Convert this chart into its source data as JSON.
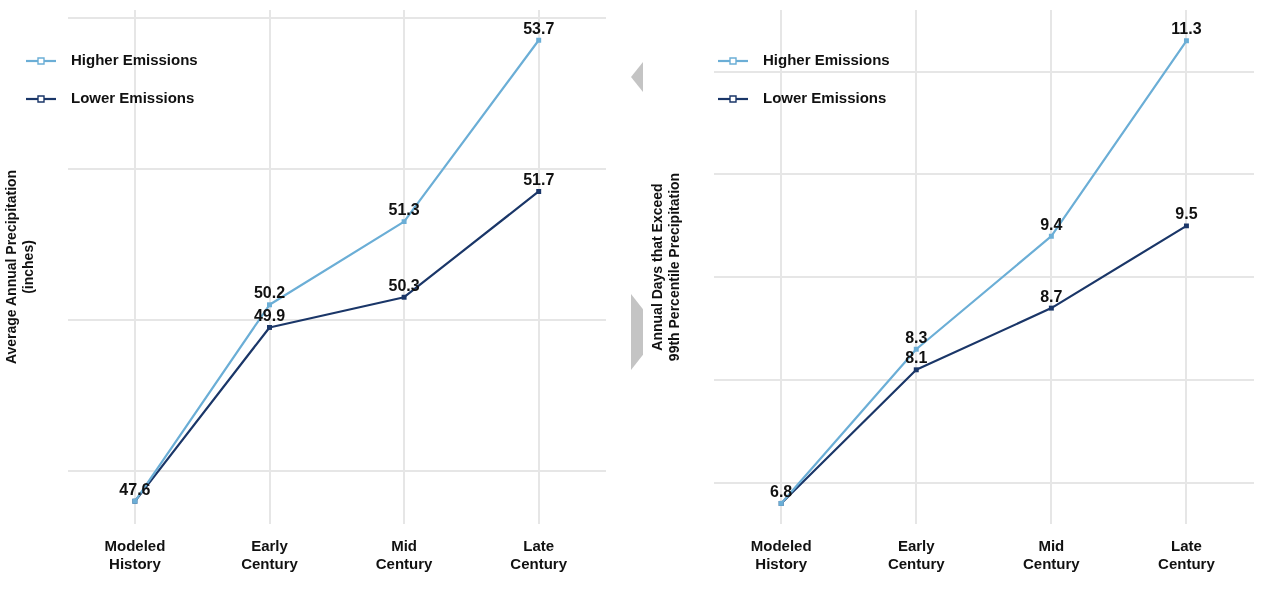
{
  "chart_data": [
    {
      "type": "line",
      "ylabel": "Average Annual Precipitation\n(inches)",
      "categories": [
        "Modeled\nHistory",
        "Early\nCentury",
        "Mid\nCentury",
        "Late\nCentury"
      ],
      "series": [
        {
          "name": "Higher Emissions",
          "color": "#6baed6",
          "values": [
            47.6,
            50.2,
            51.3,
            53.7
          ],
          "value_labels": [
            "47.6",
            "50.2",
            "51.3",
            "53.7"
          ]
        },
        {
          "name": "Lower Emissions",
          "color": "#1a3668",
          "values": [
            47.6,
            49.9,
            50.3,
            51.7
          ],
          "value_labels": [
            null,
            "49.9",
            "50.3",
            "51.7"
          ]
        }
      ],
      "ylim": [
        47.3,
        54.1
      ],
      "yticks": [
        {
          "value": 48,
          "label": null
        },
        {
          "value": 50,
          "label": null
        },
        {
          "value": 52,
          "label": null
        },
        {
          "value": 54,
          "label": null
        }
      ],
      "tick_labels": "x",
      "grid": true,
      "legend": "top left",
      "marker": "square"
    },
    {
      "type": "line",
      "ylabel": "Annual Days that Exceed\n99th Percentile Precipitation",
      "categories": [
        "Modeled\nHistory",
        "Early\nCentury",
        "Mid\nCentury",
        "Late\nCentury"
      ],
      "series": [
        {
          "name": "Higher Emissions",
          "color": "#6baed6",
          "values": [
            6.8,
            8.3,
            9.4,
            11.3
          ],
          "value_labels": [
            "6.8",
            "8.3",
            "9.4",
            "11.3"
          ]
        },
        {
          "name": "Lower Emissions",
          "color": "#1a3668",
          "values": [
            6.8,
            8.1,
            8.7,
            9.5
          ],
          "value_labels": [
            null,
            "8.1",
            "8.7",
            "9.5"
          ]
        }
      ],
      "ylim": [
        6.6,
        11.6
      ],
      "yticks": [
        {
          "value": 7,
          "label": null
        },
        {
          "value": 8,
          "label": null
        },
        {
          "value": 9,
          "label": null
        },
        {
          "value": 10,
          "label": null
        },
        {
          "value": 11,
          "label": null
        }
      ],
      "tick_labels": "x",
      "grid": true,
      "legend": "top left",
      "marker": "square"
    }
  ]
}
